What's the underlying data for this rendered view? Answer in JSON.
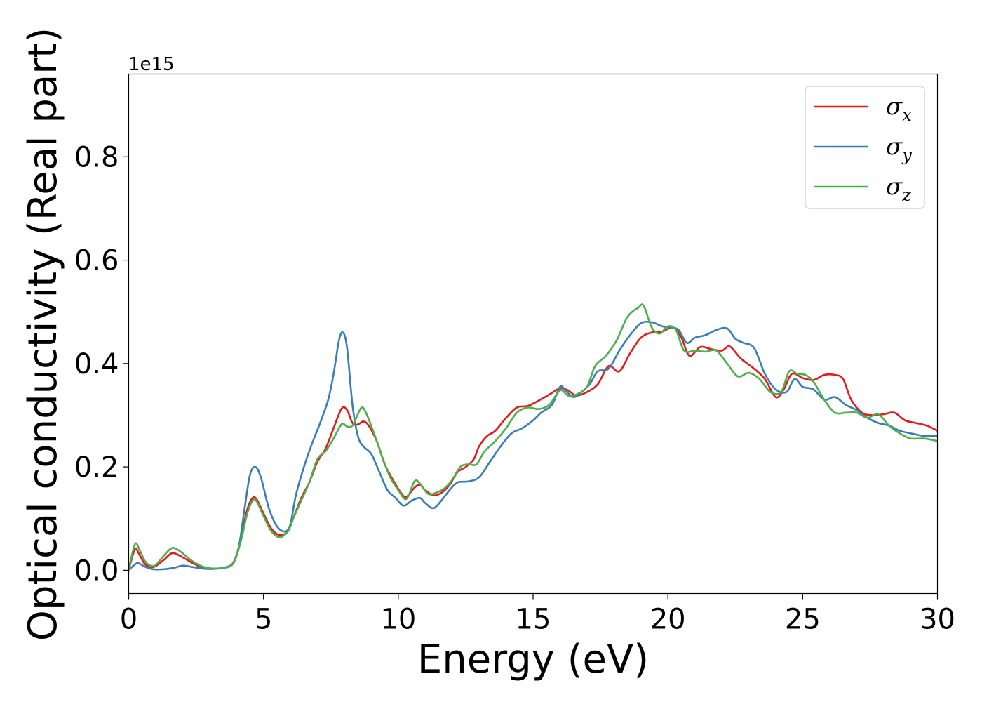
{
  "chart_data": {
    "type": "line",
    "xlabel": "Energy (eV)",
    "ylabel": "Optical conductivity (Real part)",
    "y_offset_label": "1e15",
    "xlim": [
      0,
      30
    ],
    "ylim": [
      -0.045,
      0.96
    ],
    "x_ticks": [
      0,
      5,
      10,
      15,
      20,
      25,
      30
    ],
    "x_tick_labels": [
      "0",
      "5",
      "10",
      "15",
      "20",
      "25",
      "30"
    ],
    "y_ticks": [
      0.0,
      0.2,
      0.4,
      0.6,
      0.8
    ],
    "y_tick_labels": [
      "0.0",
      "0.2",
      "0.4",
      "0.6",
      "0.8"
    ],
    "grid": false,
    "legend_position": "top-right",
    "series": [
      {
        "name": "σx",
        "base": "σ",
        "sub": "x",
        "color": "#e41a1c",
        "points": [
          [
            0,
            0.0
          ],
          [
            0.1,
            0.02
          ],
          [
            0.25,
            0.042
          ],
          [
            0.4,
            0.03
          ],
          [
            0.6,
            0.012
          ],
          [
            0.8,
            0.006
          ],
          [
            1.0,
            0.008
          ],
          [
            1.3,
            0.02
          ],
          [
            1.6,
            0.033
          ],
          [
            1.9,
            0.028
          ],
          [
            2.3,
            0.016
          ],
          [
            2.7,
            0.006
          ],
          [
            3.0,
            0.003
          ],
          [
            3.4,
            0.004
          ],
          [
            3.8,
            0.01
          ],
          [
            4.0,
            0.03
          ],
          [
            4.2,
            0.07
          ],
          [
            4.4,
            0.118
          ],
          [
            4.6,
            0.14
          ],
          [
            4.75,
            0.137
          ],
          [
            5.0,
            0.11
          ],
          [
            5.3,
            0.08
          ],
          [
            5.6,
            0.068
          ],
          [
            5.9,
            0.075
          ],
          [
            6.1,
            0.1
          ],
          [
            6.4,
            0.14
          ],
          [
            6.7,
            0.17
          ],
          [
            7.0,
            0.21
          ],
          [
            7.3,
            0.235
          ],
          [
            7.6,
            0.275
          ],
          [
            7.9,
            0.313
          ],
          [
            8.1,
            0.31
          ],
          [
            8.3,
            0.285
          ],
          [
            8.5,
            0.282
          ],
          [
            8.7,
            0.288
          ],
          [
            8.9,
            0.28
          ],
          [
            9.2,
            0.25
          ],
          [
            9.5,
            0.205
          ],
          [
            9.8,
            0.175
          ],
          [
            10.1,
            0.15
          ],
          [
            10.3,
            0.142
          ],
          [
            10.6,
            0.16
          ],
          [
            10.8,
            0.165
          ],
          [
            11.0,
            0.155
          ],
          [
            11.3,
            0.145
          ],
          [
            11.6,
            0.15
          ],
          [
            11.9,
            0.165
          ],
          [
            12.2,
            0.19
          ],
          [
            12.5,
            0.2
          ],
          [
            12.8,
            0.215
          ],
          [
            13.0,
            0.24
          ],
          [
            13.3,
            0.26
          ],
          [
            13.6,
            0.27
          ],
          [
            14.0,
            0.295
          ],
          [
            14.4,
            0.315
          ],
          [
            14.8,
            0.318
          ],
          [
            15.2,
            0.328
          ],
          [
            15.6,
            0.34
          ],
          [
            16.0,
            0.352
          ],
          [
            16.3,
            0.348
          ],
          [
            16.6,
            0.338
          ],
          [
            17.0,
            0.345
          ],
          [
            17.4,
            0.36
          ],
          [
            17.8,
            0.395
          ],
          [
            18.2,
            0.385
          ],
          [
            18.6,
            0.42
          ],
          [
            19.0,
            0.45
          ],
          [
            19.4,
            0.46
          ],
          [
            19.8,
            0.462
          ],
          [
            20.2,
            0.47
          ],
          [
            20.5,
            0.45
          ],
          [
            20.8,
            0.415
          ],
          [
            21.2,
            0.432
          ],
          [
            21.6,
            0.428
          ],
          [
            22.0,
            0.425
          ],
          [
            22.3,
            0.433
          ],
          [
            22.7,
            0.41
          ],
          [
            23.2,
            0.39
          ],
          [
            23.6,
            0.37
          ],
          [
            24.0,
            0.335
          ],
          [
            24.3,
            0.35
          ],
          [
            24.6,
            0.38
          ],
          [
            25.0,
            0.372
          ],
          [
            25.4,
            0.368
          ],
          [
            25.8,
            0.378
          ],
          [
            26.2,
            0.378
          ],
          [
            26.5,
            0.37
          ],
          [
            26.8,
            0.33
          ],
          [
            27.2,
            0.305
          ],
          [
            27.6,
            0.3
          ],
          [
            28.0,
            0.302
          ],
          [
            28.4,
            0.305
          ],
          [
            28.8,
            0.29
          ],
          [
            29.2,
            0.285
          ],
          [
            29.6,
            0.28
          ],
          [
            30.0,
            0.27
          ]
        ]
      },
      {
        "name": "σy",
        "base": "σ",
        "sub": "y",
        "color": "#377eb8",
        "points": [
          [
            0,
            0.0
          ],
          [
            0.2,
            0.01
          ],
          [
            0.35,
            0.014
          ],
          [
            0.6,
            0.007
          ],
          [
            0.9,
            0.002
          ],
          [
            1.3,
            0.002
          ],
          [
            1.7,
            0.005
          ],
          [
            2.0,
            0.009
          ],
          [
            2.4,
            0.006
          ],
          [
            2.8,
            0.003
          ],
          [
            3.2,
            0.003
          ],
          [
            3.6,
            0.006
          ],
          [
            3.9,
            0.015
          ],
          [
            4.1,
            0.05
          ],
          [
            4.3,
            0.12
          ],
          [
            4.5,
            0.185
          ],
          [
            4.7,
            0.2
          ],
          [
            4.9,
            0.18
          ],
          [
            5.2,
            0.12
          ],
          [
            5.5,
            0.085
          ],
          [
            5.8,
            0.075
          ],
          [
            6.0,
            0.09
          ],
          [
            6.2,
            0.145
          ],
          [
            6.5,
            0.2
          ],
          [
            6.8,
            0.245
          ],
          [
            7.1,
            0.285
          ],
          [
            7.4,
            0.33
          ],
          [
            7.6,
            0.38
          ],
          [
            7.8,
            0.445
          ],
          [
            7.95,
            0.46
          ],
          [
            8.1,
            0.43
          ],
          [
            8.3,
            0.32
          ],
          [
            8.5,
            0.26
          ],
          [
            8.7,
            0.24
          ],
          [
            9.0,
            0.225
          ],
          [
            9.3,
            0.19
          ],
          [
            9.6,
            0.155
          ],
          [
            9.9,
            0.14
          ],
          [
            10.2,
            0.125
          ],
          [
            10.5,
            0.135
          ],
          [
            10.8,
            0.14
          ],
          [
            11.0,
            0.13
          ],
          [
            11.3,
            0.12
          ],
          [
            11.6,
            0.135
          ],
          [
            11.9,
            0.155
          ],
          [
            12.2,
            0.17
          ],
          [
            12.6,
            0.172
          ],
          [
            13.0,
            0.18
          ],
          [
            13.4,
            0.21
          ],
          [
            13.8,
            0.24
          ],
          [
            14.2,
            0.265
          ],
          [
            14.6,
            0.275
          ],
          [
            15.0,
            0.29
          ],
          [
            15.3,
            0.305
          ],
          [
            15.7,
            0.32
          ],
          [
            16.0,
            0.355
          ],
          [
            16.2,
            0.348
          ],
          [
            16.5,
            0.335
          ],
          [
            16.8,
            0.345
          ],
          [
            17.1,
            0.36
          ],
          [
            17.4,
            0.385
          ],
          [
            17.8,
            0.39
          ],
          [
            18.2,
            0.425
          ],
          [
            18.6,
            0.455
          ],
          [
            19.0,
            0.478
          ],
          [
            19.4,
            0.48
          ],
          [
            19.8,
            0.472
          ],
          [
            20.1,
            0.47
          ],
          [
            20.4,
            0.465
          ],
          [
            20.7,
            0.44
          ],
          [
            21.0,
            0.45
          ],
          [
            21.4,
            0.455
          ],
          [
            21.8,
            0.465
          ],
          [
            22.2,
            0.468
          ],
          [
            22.5,
            0.448
          ],
          [
            22.8,
            0.44
          ],
          [
            23.2,
            0.43
          ],
          [
            23.6,
            0.38
          ],
          [
            24.0,
            0.35
          ],
          [
            24.4,
            0.345
          ],
          [
            24.7,
            0.37
          ],
          [
            25.0,
            0.355
          ],
          [
            25.4,
            0.35
          ],
          [
            25.8,
            0.33
          ],
          [
            26.2,
            0.335
          ],
          [
            26.6,
            0.32
          ],
          [
            27.0,
            0.31
          ],
          [
            27.4,
            0.295
          ],
          [
            27.8,
            0.285
          ],
          [
            28.2,
            0.28
          ],
          [
            28.6,
            0.27
          ],
          [
            29.0,
            0.265
          ],
          [
            29.5,
            0.26
          ],
          [
            30.0,
            0.26
          ]
        ]
      },
      {
        "name": "σz",
        "base": "σ",
        "sub": "z",
        "color": "#4daf4a",
        "points": [
          [
            0,
            0.0
          ],
          [
            0.1,
            0.025
          ],
          [
            0.25,
            0.052
          ],
          [
            0.4,
            0.04
          ],
          [
            0.6,
            0.018
          ],
          [
            0.8,
            0.009
          ],
          [
            1.0,
            0.01
          ],
          [
            1.3,
            0.028
          ],
          [
            1.6,
            0.043
          ],
          [
            1.9,
            0.037
          ],
          [
            2.3,
            0.02
          ],
          [
            2.7,
            0.008
          ],
          [
            3.0,
            0.004
          ],
          [
            3.4,
            0.004
          ],
          [
            3.8,
            0.009
          ],
          [
            4.0,
            0.028
          ],
          [
            4.2,
            0.065
          ],
          [
            4.4,
            0.11
          ],
          [
            4.6,
            0.135
          ],
          [
            4.75,
            0.133
          ],
          [
            5.0,
            0.105
          ],
          [
            5.3,
            0.075
          ],
          [
            5.6,
            0.064
          ],
          [
            5.9,
            0.075
          ],
          [
            6.1,
            0.1
          ],
          [
            6.4,
            0.135
          ],
          [
            6.7,
            0.17
          ],
          [
            7.0,
            0.215
          ],
          [
            7.3,
            0.23
          ],
          [
            7.6,
            0.255
          ],
          [
            7.9,
            0.283
          ],
          [
            8.1,
            0.278
          ],
          [
            8.3,
            0.28
          ],
          [
            8.5,
            0.302
          ],
          [
            8.65,
            0.315
          ],
          [
            8.8,
            0.305
          ],
          [
            9.1,
            0.265
          ],
          [
            9.4,
            0.22
          ],
          [
            9.7,
            0.18
          ],
          [
            10.0,
            0.155
          ],
          [
            10.3,
            0.138
          ],
          [
            10.6,
            0.172
          ],
          [
            10.8,
            0.168
          ],
          [
            11.1,
            0.148
          ],
          [
            11.4,
            0.15
          ],
          [
            11.7,
            0.158
          ],
          [
            12.0,
            0.175
          ],
          [
            12.3,
            0.2
          ],
          [
            12.6,
            0.205
          ],
          [
            12.9,
            0.205
          ],
          [
            13.2,
            0.23
          ],
          [
            13.6,
            0.25
          ],
          [
            14.0,
            0.275
          ],
          [
            14.4,
            0.305
          ],
          [
            14.8,
            0.315
          ],
          [
            15.2,
            0.312
          ],
          [
            15.6,
            0.32
          ],
          [
            16.0,
            0.348
          ],
          [
            16.3,
            0.338
          ],
          [
            16.6,
            0.34
          ],
          [
            17.0,
            0.355
          ],
          [
            17.3,
            0.395
          ],
          [
            17.7,
            0.415
          ],
          [
            18.1,
            0.445
          ],
          [
            18.5,
            0.49
          ],
          [
            18.9,
            0.508
          ],
          [
            19.1,
            0.512
          ],
          [
            19.4,
            0.47
          ],
          [
            19.7,
            0.458
          ],
          [
            20.0,
            0.472
          ],
          [
            20.3,
            0.465
          ],
          [
            20.6,
            0.425
          ],
          [
            21.0,
            0.425
          ],
          [
            21.4,
            0.423
          ],
          [
            21.8,
            0.425
          ],
          [
            22.2,
            0.4
          ],
          [
            22.6,
            0.375
          ],
          [
            23.0,
            0.382
          ],
          [
            23.4,
            0.37
          ],
          [
            23.8,
            0.345
          ],
          [
            24.2,
            0.345
          ],
          [
            24.5,
            0.385
          ],
          [
            24.8,
            0.38
          ],
          [
            25.1,
            0.378
          ],
          [
            25.4,
            0.365
          ],
          [
            25.8,
            0.33
          ],
          [
            26.2,
            0.305
          ],
          [
            26.6,
            0.305
          ],
          [
            27.0,
            0.305
          ],
          [
            27.4,
            0.295
          ],
          [
            27.8,
            0.302
          ],
          [
            28.2,
            0.28
          ],
          [
            28.6,
            0.265
          ],
          [
            29.0,
            0.255
          ],
          [
            29.5,
            0.255
          ],
          [
            30.0,
            0.25
          ]
        ]
      }
    ]
  }
}
